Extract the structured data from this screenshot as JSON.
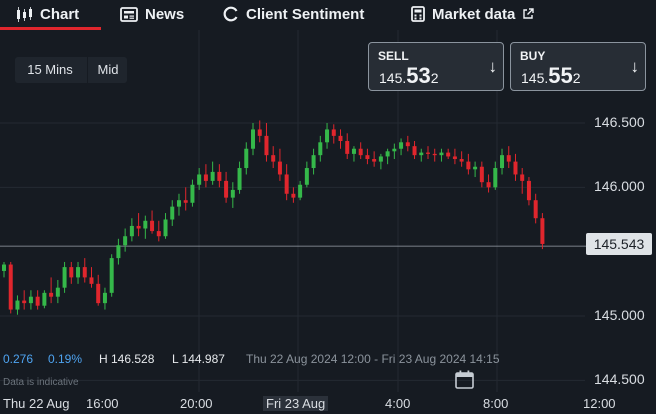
{
  "nav": {
    "tabs": [
      {
        "label": "Chart",
        "icon": "candles-icon",
        "active": true
      },
      {
        "label": "News",
        "icon": "newspaper-icon"
      },
      {
        "label": "Client Sentiment",
        "icon": "sentiment-gauge-icon"
      },
      {
        "label": "Market data",
        "icon": "calculator-icon",
        "external": "external-link-icon"
      }
    ],
    "active_color": "#e0262d"
  },
  "timeframe": {
    "interval": "15 Mins",
    "price_type": "Mid"
  },
  "sell": {
    "label": "SELL",
    "price_small": "145.",
    "price_big": "53",
    "price_tail": "2",
    "arrow": "↓"
  },
  "buy": {
    "label": "BUY",
    "price_small": "145.",
    "price_big": "55",
    "price_tail": "2",
    "arrow": "↓"
  },
  "price_axis": [
    "146.500",
    "146.000",
    "145.000",
    "144.500"
  ],
  "current_price": "145.543",
  "stats": {
    "change": "0.276",
    "change_pct": "0.19%",
    "high": "H 146.528",
    "low": "L 144.987",
    "range": "Thu 22 Aug 2024 12:00 - Fri 23 Aug 2024 14:15",
    "positive_color": "#4ea3f0"
  },
  "indicative": "Data is indicative",
  "time_axis": [
    "Thu 22 Aug",
    "16:00",
    "20:00",
    "Fri 23 Aug",
    "4:00",
    "8:00",
    "12:00"
  ],
  "colors": {
    "up": "#35b84a",
    "down": "#e0262d",
    "background": "#161b22"
  },
  "chart_data": {
    "type": "candlestick",
    "x": [
      "Thu 22 Aug 12:00",
      "Fri 23 Aug 14:15"
    ],
    "ylim": [
      144.45,
      146.75
    ],
    "current": 145.543,
    "high": 146.528,
    "low": 144.987,
    "series": [
      {
        "values": [
          [
            145.35,
            145.42,
            145.3,
            145.4
          ],
          [
            145.4,
            145.42,
            145.02,
            145.05
          ],
          [
            145.05,
            145.16,
            145.01,
            145.12
          ],
          [
            145.12,
            145.2,
            145.05,
            145.1
          ],
          [
            145.1,
            145.2,
            145.05,
            145.15
          ],
          [
            145.15,
            145.2,
            145.05,
            145.08
          ],
          [
            145.08,
            145.2,
            145.06,
            145.18
          ],
          [
            145.18,
            145.3,
            145.1,
            145.15
          ],
          [
            145.15,
            145.28,
            145.1,
            145.22
          ],
          [
            145.22,
            145.42,
            145.18,
            145.38
          ],
          [
            145.38,
            145.42,
            145.25,
            145.3
          ],
          [
            145.3,
            145.42,
            145.25,
            145.38
          ],
          [
            145.38,
            145.45,
            145.26,
            145.3
          ],
          [
            145.3,
            145.38,
            145.22,
            145.25
          ],
          [
            145.25,
            145.32,
            145.08,
            145.1
          ],
          [
            145.1,
            145.22,
            145.05,
            145.18
          ],
          [
            145.18,
            145.48,
            145.15,
            145.45
          ],
          [
            145.45,
            145.6,
            145.4,
            145.55
          ],
          [
            145.55,
            145.68,
            145.5,
            145.62
          ],
          [
            145.62,
            145.76,
            145.58,
            145.7
          ],
          [
            145.7,
            145.8,
            145.62,
            145.68
          ],
          [
            145.68,
            145.78,
            145.6,
            145.74
          ],
          [
            145.74,
            145.82,
            145.64,
            145.66
          ],
          [
            145.66,
            145.74,
            145.58,
            145.62
          ],
          [
            145.62,
            145.8,
            145.6,
            145.75
          ],
          [
            145.75,
            145.9,
            145.7,
            145.85
          ],
          [
            145.85,
            145.95,
            145.78,
            145.9
          ],
          [
            145.9,
            146.0,
            145.82,
            145.88
          ],
          [
            145.88,
            146.06,
            145.85,
            146.02
          ],
          [
            146.02,
            146.15,
            145.98,
            146.1
          ],
          [
            146.1,
            146.18,
            146.0,
            146.05
          ],
          [
            146.05,
            146.2,
            146.02,
            146.12
          ],
          [
            146.12,
            146.18,
            146.0,
            146.05
          ],
          [
            146.05,
            146.12,
            145.88,
            145.92
          ],
          [
            145.92,
            146.04,
            145.84,
            145.98
          ],
          [
            145.98,
            146.2,
            145.95,
            146.15
          ],
          [
            146.15,
            146.35,
            146.1,
            146.3
          ],
          [
            146.3,
            146.5,
            146.25,
            146.45
          ],
          [
            146.45,
            146.52,
            146.35,
            146.4
          ],
          [
            146.4,
            146.5,
            146.2,
            146.25
          ],
          [
            146.25,
            146.32,
            146.15,
            146.2
          ],
          [
            146.2,
            146.3,
            146.05,
            146.1
          ],
          [
            146.1,
            146.18,
            145.9,
            145.95
          ],
          [
            145.95,
            146.0,
            145.88,
            145.92
          ],
          [
            145.92,
            146.05,
            145.9,
            146.02
          ],
          [
            146.02,
            146.2,
            146.0,
            146.15
          ],
          [
            146.15,
            146.3,
            146.1,
            146.25
          ],
          [
            146.25,
            146.4,
            146.2,
            146.35
          ],
          [
            146.35,
            146.5,
            146.3,
            146.45
          ],
          [
            146.45,
            146.49,
            146.34,
            146.4
          ],
          [
            146.4,
            146.45,
            146.3,
            146.36
          ],
          [
            146.36,
            146.42,
            146.22,
            146.26
          ],
          [
            146.26,
            146.32,
            146.2,
            146.3
          ],
          [
            146.3,
            146.35,
            146.22,
            146.25
          ],
          [
            146.25,
            146.3,
            146.18,
            146.22
          ],
          [
            146.22,
            146.28,
            146.16,
            146.2
          ],
          [
            146.2,
            146.26,
            146.14,
            146.24
          ],
          [
            146.24,
            146.3,
            146.18,
            146.28
          ],
          [
            146.28,
            146.34,
            146.22,
            146.3
          ],
          [
            146.3,
            146.38,
            146.25,
            146.35
          ],
          [
            146.35,
            146.4,
            146.28,
            146.32
          ],
          [
            146.32,
            146.36,
            146.22,
            146.25
          ],
          [
            146.25,
            146.3,
            146.2,
            146.27
          ],
          [
            146.27,
            146.32,
            146.22,
            146.26
          ],
          [
            146.26,
            146.3,
            146.2,
            146.25
          ],
          [
            146.25,
            146.3,
            146.2,
            146.27
          ],
          [
            146.27,
            146.3,
            146.22,
            146.24
          ],
          [
            146.24,
            146.3,
            146.18,
            146.22
          ],
          [
            146.22,
            146.28,
            146.16,
            146.2
          ],
          [
            146.2,
            146.26,
            146.1,
            146.14
          ],
          [
            146.14,
            146.2,
            146.08,
            146.16
          ],
          [
            146.16,
            146.2,
            146.0,
            146.04
          ],
          [
            146.04,
            146.1,
            145.96,
            146.0
          ],
          [
            146.0,
            146.2,
            145.98,
            146.15
          ],
          [
            146.15,
            146.3,
            146.1,
            146.25
          ],
          [
            146.25,
            146.32,
            146.15,
            146.2
          ],
          [
            146.2,
            146.26,
            146.05,
            146.1
          ],
          [
            146.1,
            146.15,
            145.95,
            146.05
          ],
          [
            146.05,
            146.08,
            145.86,
            145.9
          ],
          [
            145.9,
            145.95,
            145.72,
            145.76
          ],
          [
            145.76,
            145.8,
            145.52,
            145.56
          ]
        ]
      }
    ]
  }
}
